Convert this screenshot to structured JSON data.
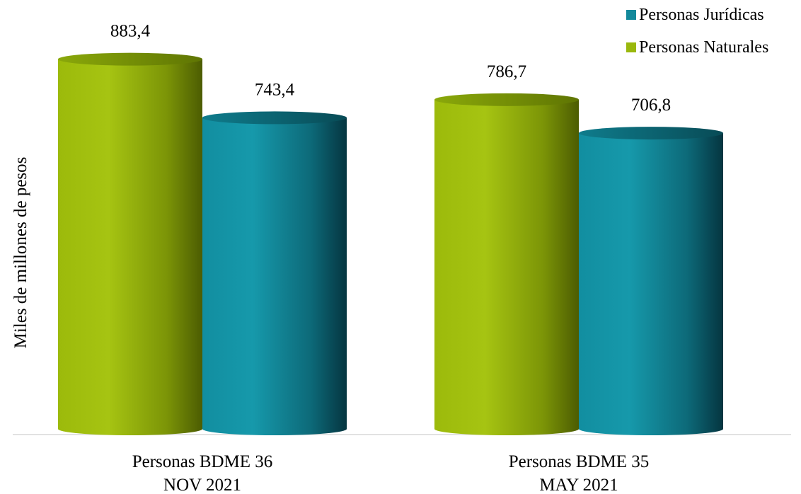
{
  "chart_data": {
    "type": "bar",
    "style": "3d-cylinder",
    "title": "",
    "xlabel": "",
    "ylabel": "Miles de millones de pesos",
    "categories": [
      [
        "Personas BDME 36",
        "NOV 2021"
      ],
      [
        "Personas BDME 35",
        "MAY 2021"
      ]
    ],
    "series": [
      {
        "name": "Personas Naturales",
        "color": "#9ab80d",
        "values": [
          883.4,
          786.7
        ],
        "value_labels": [
          "883,4",
          "786,7"
        ]
      },
      {
        "name": "Personas Jurídicas",
        "color": "#13899b",
        "values": [
          743.4,
          706.8
        ],
        "value_labels": [
          "743,4",
          "706,8"
        ]
      }
    ],
    "legend_order": [
      "Personas Jurídicas",
      "Personas Naturales"
    ],
    "legend_position": "top-right",
    "ylim": [
      0,
      1000
    ],
    "grid": false
  }
}
